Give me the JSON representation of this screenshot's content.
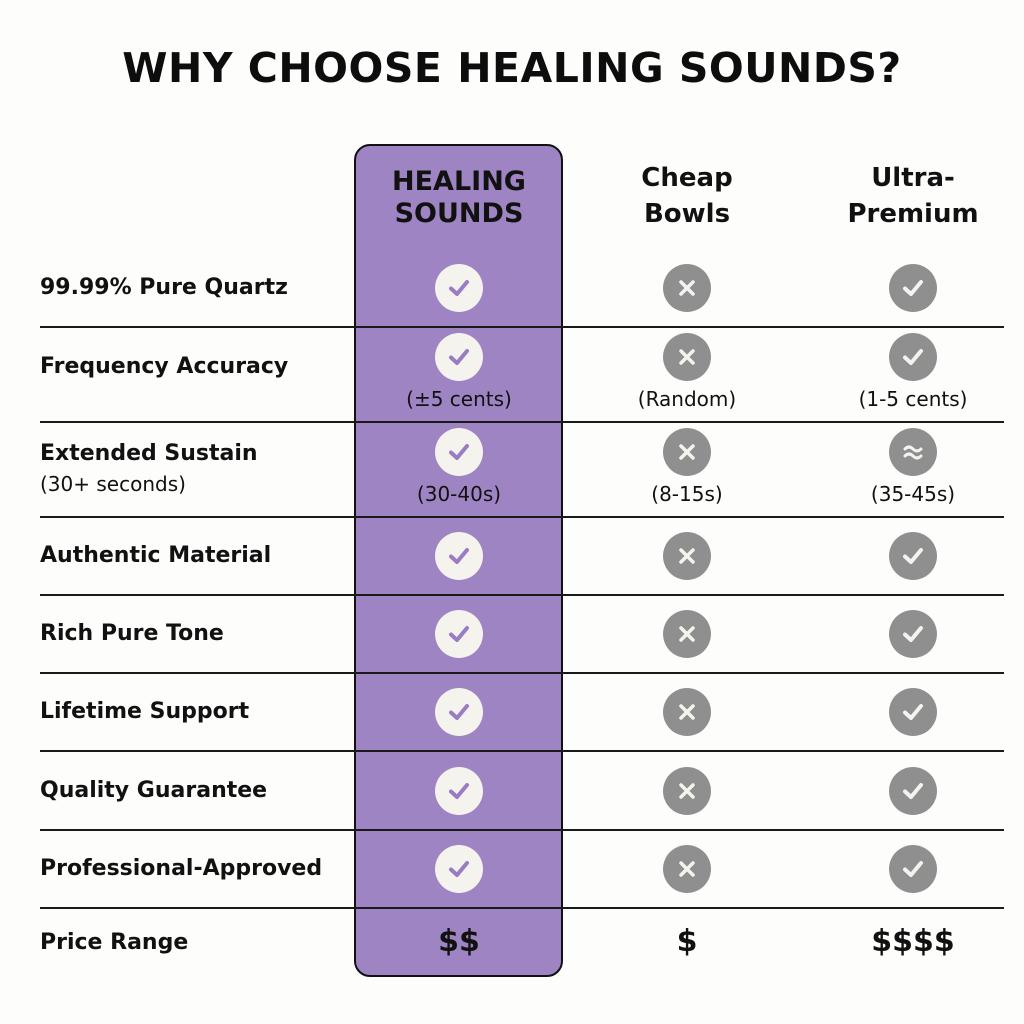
{
  "title": "WHY CHOOSE HEALING SOUNDS?",
  "columns": [
    {
      "line1": "HEALING",
      "line2": "SOUNDS",
      "highlight": true
    },
    {
      "line1": "Cheap",
      "line2": "Bowls",
      "highlight": false
    },
    {
      "line1": "Ultra-",
      "line2": "Premium",
      "highlight": false
    }
  ],
  "colors": {
    "highlight": "#9f84c3",
    "icon_gray": "#8f8f8f",
    "icon_light": "#f5f3ee",
    "check_purple": "#9a7cc4"
  },
  "rows": [
    {
      "label": "99.99% Pure Quartz",
      "sub": "",
      "cells": [
        {
          "icon": "check"
        },
        {
          "icon": "x"
        },
        {
          "icon": "check"
        }
      ]
    },
    {
      "label": "Frequency Accuracy",
      "sub": "",
      "cells": [
        {
          "icon": "check",
          "note": "(±5 cents)"
        },
        {
          "icon": "x",
          "note": "(Random)"
        },
        {
          "icon": "check",
          "note": "(1-5 cents)"
        }
      ]
    },
    {
      "label": "Extended Sustain",
      "sub": "(30+ seconds)",
      "cells": [
        {
          "icon": "check",
          "note": "(30-40s)"
        },
        {
          "icon": "x",
          "note": "(8-15s)"
        },
        {
          "icon": "approx",
          "note": "(35-45s)"
        }
      ]
    },
    {
      "label": "Authentic Material",
      "sub": "",
      "cells": [
        {
          "icon": "check"
        },
        {
          "icon": "x"
        },
        {
          "icon": "check"
        }
      ]
    },
    {
      "label": "Rich Pure Tone",
      "sub": "",
      "cells": [
        {
          "icon": "check"
        },
        {
          "icon": "x"
        },
        {
          "icon": "check"
        }
      ]
    },
    {
      "label": "Lifetime Support",
      "sub": "",
      "cells": [
        {
          "icon": "check"
        },
        {
          "icon": "x"
        },
        {
          "icon": "check"
        }
      ]
    },
    {
      "label": "Quality Guarantee",
      "sub": "",
      "cells": [
        {
          "icon": "check"
        },
        {
          "icon": "x"
        },
        {
          "icon": "check"
        }
      ]
    },
    {
      "label": "Professional-Approved",
      "sub": "",
      "cells": [
        {
          "icon": "check"
        },
        {
          "icon": "x"
        },
        {
          "icon": "check"
        }
      ]
    }
  ],
  "price_row": {
    "label": "Price Range",
    "values": [
      "$$",
      "$",
      "$$$$"
    ]
  }
}
